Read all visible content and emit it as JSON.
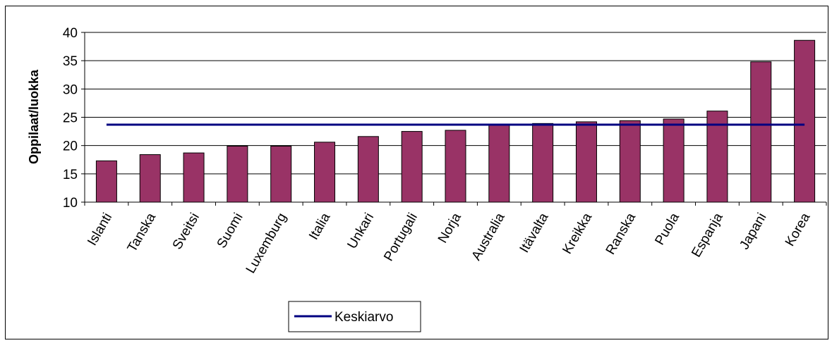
{
  "chart_data": {
    "type": "bar",
    "title": "",
    "xlabel": "",
    "ylabel": "Oppilaat/luokka",
    "ylim": [
      10,
      40
    ],
    "yticks": [
      10,
      15,
      20,
      25,
      30,
      35,
      40
    ],
    "grid": true,
    "categories": [
      "Islanti",
      "Tanska",
      "Sveitsi",
      "Suomi",
      "Luxemburg",
      "Italia",
      "Unkari",
      "Portugali",
      "Norja",
      "Australia",
      "Itävalta",
      "Kreikka",
      "Ranska",
      "Puola",
      "Espanja",
      "Japani",
      "Korea"
    ],
    "series": [
      {
        "values": [
          17.3,
          18.4,
          18.7,
          19.9,
          19.9,
          20.6,
          21.6,
          22.5,
          22.7,
          23.6,
          23.9,
          24.2,
          24.4,
          24.7,
          26.1,
          34.8,
          38.6
        ],
        "color": "#993366"
      }
    ],
    "reference_line": {
      "name": "Keskiarvo",
      "value": 23.7,
      "color": "#000080"
    },
    "legend": {
      "position": "bottom-center",
      "entries": [
        "Keskiarvo"
      ]
    }
  }
}
